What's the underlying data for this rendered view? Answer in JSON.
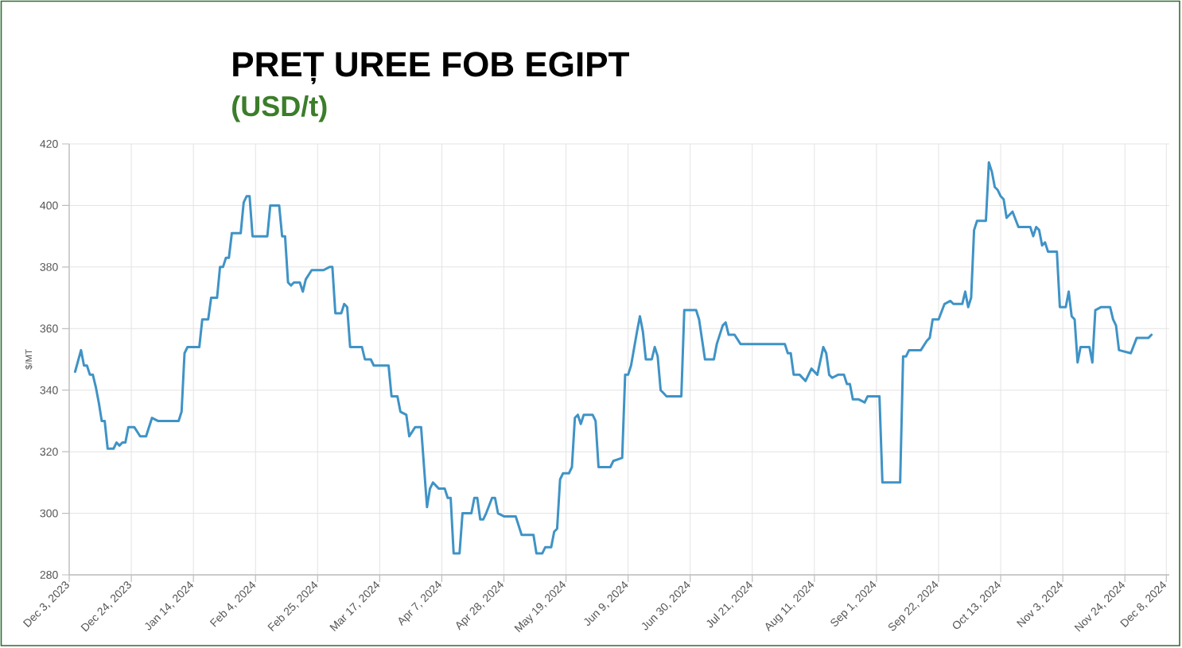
{
  "chart_data": {
    "type": "line",
    "title": "PREȚ UREE FOB EGIPT",
    "subtitle": "(USD/t)",
    "ylabel": "$/MT",
    "x": [
      "2023-12-05",
      "2023-12-07",
      "2023-12-08",
      "2023-12-09",
      "2023-12-10",
      "2023-12-11",
      "2023-12-12",
      "2023-12-13",
      "2023-12-14",
      "2023-12-15",
      "2023-12-16",
      "2023-12-18",
      "2023-12-19",
      "2023-12-20",
      "2023-12-21",
      "2023-12-22",
      "2023-12-23",
      "2023-12-25",
      "2023-12-27",
      "2023-12-29",
      "2023-12-31",
      "2024-01-02",
      "2024-01-09",
      "2024-01-10",
      "2024-01-11",
      "2024-01-12",
      "2024-01-16",
      "2024-01-17",
      "2024-01-19",
      "2024-01-20",
      "2024-01-22",
      "2024-01-23",
      "2024-01-24",
      "2024-01-25",
      "2024-01-26",
      "2024-01-27",
      "2024-01-30",
      "2024-01-31",
      "2024-02-01",
      "2024-02-02",
      "2024-02-03",
      "2024-02-08",
      "2024-02-09",
      "2024-02-12",
      "2024-02-13",
      "2024-02-14",
      "2024-02-15",
      "2024-02-16",
      "2024-02-17",
      "2024-02-19",
      "2024-02-20",
      "2024-02-21",
      "2024-02-23",
      "2024-02-27",
      "2024-02-29",
      "2024-03-01",
      "2024-03-02",
      "2024-03-04",
      "2024-03-05",
      "2024-03-06",
      "2024-03-07",
      "2024-03-11",
      "2024-03-12",
      "2024-03-14",
      "2024-03-15",
      "2024-03-20",
      "2024-03-21",
      "2024-03-23",
      "2024-03-24",
      "2024-03-26",
      "2024-03-27",
      "2024-03-29",
      "2024-03-31",
      "2024-04-02",
      "2024-04-03",
      "2024-04-04",
      "2024-04-06",
      "2024-04-08",
      "2024-04-09",
      "2024-04-10",
      "2024-04-11",
      "2024-04-13",
      "2024-04-14",
      "2024-04-17",
      "2024-04-18",
      "2024-04-19",
      "2024-04-20",
      "2024-04-21",
      "2024-04-22",
      "2024-04-24",
      "2024-04-25",
      "2024-04-26",
      "2024-04-28",
      "2024-05-02",
      "2024-05-04",
      "2024-05-08",
      "2024-05-09",
      "2024-05-11",
      "2024-05-12",
      "2024-05-14",
      "2024-05-15",
      "2024-05-16",
      "2024-05-17",
      "2024-05-18",
      "2024-05-20",
      "2024-05-21",
      "2024-05-22",
      "2024-05-23",
      "2024-05-24",
      "2024-05-25",
      "2024-05-28",
      "2024-05-29",
      "2024-05-30",
      "2024-06-03",
      "2024-06-04",
      "2024-06-07",
      "2024-06-08",
      "2024-06-09",
      "2024-06-10",
      "2024-06-12",
      "2024-06-13",
      "2024-06-14",
      "2024-06-15",
      "2024-06-17",
      "2024-06-18",
      "2024-06-19",
      "2024-06-20",
      "2024-06-21",
      "2024-06-22",
      "2024-06-27",
      "2024-06-28",
      "2024-07-02",
      "2024-07-03",
      "2024-07-05",
      "2024-07-08",
      "2024-07-09",
      "2024-07-11",
      "2024-07-12",
      "2024-07-13",
      "2024-07-15",
      "2024-07-17",
      "2024-08-01",
      "2024-08-02",
      "2024-08-03",
      "2024-08-04",
      "2024-08-06",
      "2024-08-08",
      "2024-08-10",
      "2024-08-12",
      "2024-08-14",
      "2024-08-15",
      "2024-08-16",
      "2024-08-17",
      "2024-08-19",
      "2024-08-21",
      "2024-08-22",
      "2024-08-23",
      "2024-08-24",
      "2024-08-26",
      "2024-08-28",
      "2024-08-29",
      "2024-09-02",
      "2024-09-03",
      "2024-09-09",
      "2024-09-10",
      "2024-09-11",
      "2024-09-12",
      "2024-09-16",
      "2024-09-18",
      "2024-09-19",
      "2024-09-20",
      "2024-09-22",
      "2024-09-24",
      "2024-09-26",
      "2024-09-27",
      "2024-09-30",
      "2024-10-01",
      "2024-10-02",
      "2024-10-03",
      "2024-10-04",
      "2024-10-05",
      "2024-10-08",
      "2024-10-09",
      "2024-10-10",
      "2024-10-11",
      "2024-10-12",
      "2024-10-13",
      "2024-10-14",
      "2024-10-15",
      "2024-10-16",
      "2024-10-17",
      "2024-10-19",
      "2024-10-23",
      "2024-10-24",
      "2024-10-25",
      "2024-10-26",
      "2024-10-27",
      "2024-10-28",
      "2024-10-29",
      "2024-11-01",
      "2024-11-02",
      "2024-11-04",
      "2024-11-05",
      "2024-11-06",
      "2024-11-07",
      "2024-11-08",
      "2024-11-09",
      "2024-11-12",
      "2024-11-13",
      "2024-11-14",
      "2024-11-16",
      "2024-11-19",
      "2024-11-20",
      "2024-11-21",
      "2024-11-22",
      "2024-11-26",
      "2024-11-28",
      "2024-11-29",
      "2024-12-02",
      "2024-12-03"
    ],
    "series": [
      {
        "color": "#3f93c6",
        "values": [
          346,
          353,
          348,
          348,
          345,
          345,
          341,
          336,
          330,
          330,
          321,
          321,
          323,
          322,
          323,
          323,
          328,
          328,
          325,
          325,
          331,
          330,
          330,
          333,
          352,
          354,
          354,
          363,
          363,
          370,
          370,
          380,
          380,
          383,
          383,
          391,
          391,
          401,
          403,
          403,
          390,
          390,
          400,
          400,
          390,
          390,
          375,
          374,
          375,
          375,
          372,
          376,
          379,
          379,
          380,
          380,
          365,
          365,
          368,
          367,
          354,
          354,
          350,
          350,
          348,
          348,
          338,
          338,
          333,
          332,
          325,
          328,
          328,
          302,
          308,
          310,
          308,
          308,
          305,
          305,
          287,
          287,
          300,
          300,
          305,
          305,
          298,
          298,
          300,
          305,
          305,
          300,
          299,
          299,
          293,
          293,
          287,
          287,
          289,
          289,
          294,
          295,
          311,
          313,
          313,
          315,
          331,
          332,
          329,
          332,
          332,
          330,
          315,
          315,
          317,
          318,
          345,
          345,
          348,
          359,
          364,
          359,
          350,
          350,
          354,
          351,
          340,
          339,
          338,
          338,
          366,
          366,
          363,
          350,
          350,
          355,
          361,
          362,
          358,
          358,
          355,
          355,
          352,
          352,
          345,
          345,
          343,
          347,
          345,
          354,
          352,
          345,
          344,
          345,
          345,
          342,
          342,
          337,
          337,
          336,
          338,
          338,
          310,
          310,
          351,
          351,
          353,
          353,
          356,
          357,
          363,
          363,
          368,
          369,
          368,
          368,
          372,
          367,
          370,
          392,
          395,
          395,
          414,
          411,
          406,
          405,
          403,
          402,
          396,
          397,
          398,
          393,
          393,
          390,
          393,
          392,
          387,
          388,
          385,
          385,
          367,
          367,
          372,
          364,
          363,
          349,
          354,
          354,
          349,
          366,
          367,
          367,
          363,
          361,
          353,
          352,
          357,
          357,
          357,
          358
        ]
      }
    ],
    "xlim": [
      "2023-12-03",
      "2024-12-09"
    ],
    "xticks": [
      {
        "value": "2023-12-03",
        "label": "Dec 3, 2023"
      },
      {
        "value": "2023-12-24",
        "label": "Dec 24, 2023"
      },
      {
        "value": "2024-01-14",
        "label": "Jan 14, 2024"
      },
      {
        "value": "2024-02-04",
        "label": "Feb 4, 2024"
      },
      {
        "value": "2024-02-25",
        "label": "Feb 25, 2024"
      },
      {
        "value": "2024-03-17",
        "label": "Mar 17, 2024"
      },
      {
        "value": "2024-04-07",
        "label": "Apr 7, 2024"
      },
      {
        "value": "2024-04-28",
        "label": "Apr 28, 2024"
      },
      {
        "value": "2024-05-19",
        "label": "May 19, 2024"
      },
      {
        "value": "2024-06-09",
        "label": "Jun 9, 2024"
      },
      {
        "value": "2024-06-30",
        "label": "Jun 30, 2024"
      },
      {
        "value": "2024-07-21",
        "label": "Jul 21, 2024"
      },
      {
        "value": "2024-08-11",
        "label": "Aug 11, 2024"
      },
      {
        "value": "2024-09-01",
        "label": "Sep 1, 2024"
      },
      {
        "value": "2024-09-22",
        "label": "Sep 22, 2024"
      },
      {
        "value": "2024-10-13",
        "label": "Oct 13, 2024"
      },
      {
        "value": "2024-11-03",
        "label": "Nov 3, 2024"
      },
      {
        "value": "2024-11-24",
        "label": "Nov 24, 2024"
      },
      {
        "value": "2024-12-08",
        "label": "Dec 8, 2024"
      }
    ],
    "ylim": [
      280,
      420
    ],
    "yticks": [
      280,
      300,
      320,
      340,
      360,
      380,
      400,
      420
    ],
    "grid": true
  }
}
